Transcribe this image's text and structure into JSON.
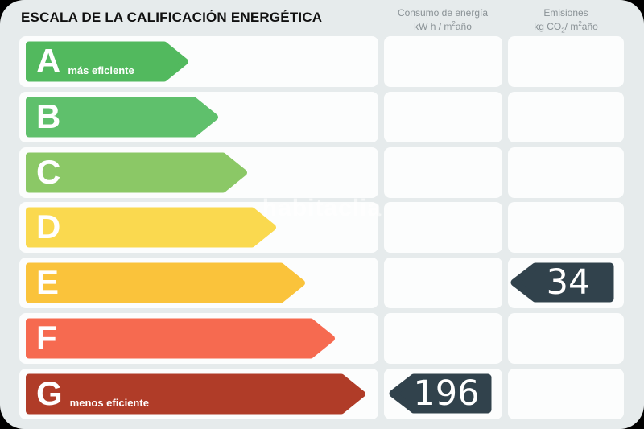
{
  "title": "ESCALA DE LA CALIFICACIÓN ENERGÉTICA",
  "watermark": "habitaclia",
  "columns": {
    "consumo": {
      "line1": "Consumo de energía",
      "unit_prefix": "kW h / m",
      "unit_sup": "2",
      "unit_suffix": "año"
    },
    "emisiones": {
      "line1": "Emisiones",
      "unit_prefix": "kg CO",
      "unit_sub": "2",
      "unit_mid": "/ m",
      "unit_sup": "2",
      "unit_suffix": "año"
    }
  },
  "colors": {
    "panel_background": "#e6ebec",
    "cell_background": "#fcfdfd",
    "tag_background": "#31424c",
    "title_text": "#111111",
    "header_text": "#8a9296",
    "band_text": "#ffffff"
  },
  "chart_data": {
    "type": "bar",
    "title": "ESCALA DE LA CALIFICACIÓN ENERGÉTICA",
    "categories": [
      "A",
      "B",
      "C",
      "D",
      "E",
      "F",
      "G"
    ],
    "rows": [
      {
        "letter": "A",
        "label": "más eficiente",
        "color": "#52b95e",
        "band_width": 204,
        "consumo": null,
        "emisiones": null
      },
      {
        "letter": "B",
        "label": "",
        "color": "#5fc06c",
        "band_width": 241,
        "consumo": null,
        "emisiones": null
      },
      {
        "letter": "C",
        "label": "",
        "color": "#8bc866",
        "band_width": 277,
        "consumo": null,
        "emisiones": null
      },
      {
        "letter": "D",
        "label": "",
        "color": "#fad94f",
        "band_width": 313,
        "consumo": null,
        "emisiones": null
      },
      {
        "letter": "E",
        "label": "",
        "color": "#fac33b",
        "band_width": 349,
        "consumo": null,
        "emisiones": "34"
      },
      {
        "letter": "F",
        "label": "",
        "color": "#f66a50",
        "band_width": 386,
        "consumo": null,
        "emisiones": null
      },
      {
        "letter": "G",
        "label": "menos eficiente",
        "color": "#b03c28",
        "band_width": 424,
        "consumo": "196",
        "emisiones": null
      }
    ],
    "values": {
      "consumo_kwh_m2ano": 196,
      "consumo_rating": "G",
      "emisiones_kgco2_m2ano": 34,
      "emisiones_rating": "E"
    },
    "legend": "none",
    "layout": "horizontal rating scale, best (A) to worst (G), value tags point left"
  }
}
